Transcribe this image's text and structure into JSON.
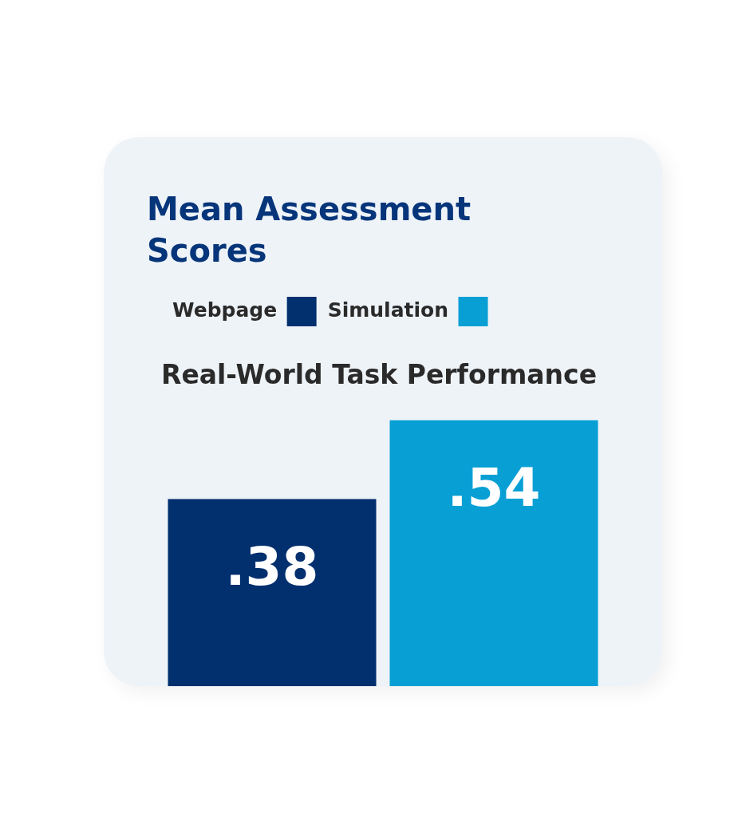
{
  "chart_data": {
    "type": "bar",
    "title": "Mean Assessment Scores",
    "subtitle": "Real-World Task Performance",
    "categories": [
      null
    ],
    "series": [
      {
        "name": "Webpage",
        "color": "#022f6e",
        "values": [
          0.38
        ],
        "value_labels": [
          ".38"
        ]
      },
      {
        "name": "Simulation",
        "color": "#079fd4",
        "values": [
          0.54
        ],
        "value_labels": [
          ".54"
        ]
      }
    ],
    "legend": "top left"
  }
}
